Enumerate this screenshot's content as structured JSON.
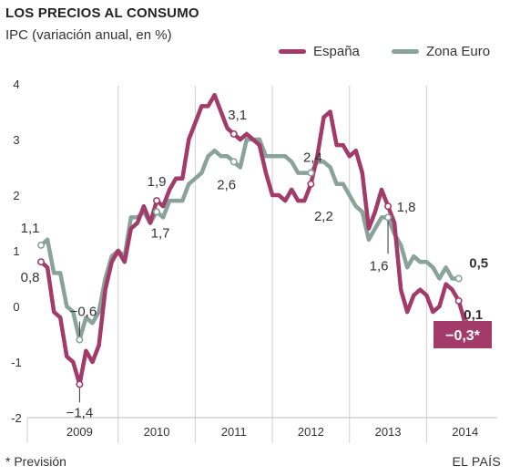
{
  "header": {
    "title": "LOS PRECIOS AL CONSUMO",
    "subtitle": "IPC (variación anual, en %)"
  },
  "footer": {
    "footnote": "* Previsión",
    "source": "EL PAÍS"
  },
  "colors": {
    "espana": "#a23a6a",
    "zona_euro": "#8aa39a",
    "grid": "#cfcfcf",
    "background": "#ffffff"
  },
  "chart_data": {
    "type": "line",
    "title": "LOS PRECIOS AL CONSUMO",
    "subtitle": "IPC (variación anual, en %)",
    "xlabel": "",
    "ylabel": "",
    "ylim": [
      -2,
      4
    ],
    "y_ticks": [
      "4",
      "3",
      "2",
      "1",
      "0",
      "-1",
      "-2"
    ],
    "y_tick_values": [
      4,
      3,
      2,
      1,
      0,
      -1,
      -2
    ],
    "x_ticks": [
      "2009",
      "2010",
      "2011",
      "2012",
      "2013",
      "2014"
    ],
    "x_tick_years": [
      2009,
      2010,
      2011,
      2012,
      2013,
      2014
    ],
    "x_start": "2008-12",
    "x_end": "2014-12",
    "grid": "vertical lines at year boundaries",
    "legend": "top-right",
    "series": [
      {
        "name": "España",
        "color": "#a23a6a",
        "start": "2009-01",
        "values": [
          0.8,
          0.7,
          -0.1,
          -0.2,
          -0.9,
          -1.0,
          -1.4,
          -0.8,
          -1.0,
          -0.7,
          0.3,
          0.8,
          1.0,
          0.8,
          1.4,
          1.5,
          1.8,
          1.5,
          1.9,
          1.8,
          2.1,
          2.3,
          2.3,
          3.0,
          3.3,
          3.6,
          3.6,
          3.8,
          3.5,
          3.2,
          3.1,
          3.0,
          3.1,
          3.0,
          2.9,
          2.4,
          2.0,
          2.0,
          1.9,
          2.1,
          1.9,
          1.9,
          2.2,
          2.7,
          3.4,
          3.5,
          2.9,
          2.9,
          2.7,
          2.8,
          2.4,
          1.4,
          1.7,
          2.1,
          1.8,
          1.5,
          0.3,
          -0.1,
          0.2,
          0.3,
          0.2,
          -0.1,
          0.0,
          0.4,
          0.3,
          0.1,
          -0.3
        ],
        "labels": [
          {
            "text": "0,8",
            "at": "2009-01"
          },
          {
            "text": "−1,4",
            "at": "2009-07"
          },
          {
            "text": "1,9",
            "at": "2010-07"
          },
          {
            "text": "3,1",
            "at": "2011-07"
          },
          {
            "text": "2,2",
            "at": "2012-07"
          },
          {
            "text": "1,8",
            "at": "2013-07"
          },
          {
            "text": "0,1",
            "at": "2014-06"
          },
          {
            "text": "−0,3*",
            "at": "2014-07"
          }
        ]
      },
      {
        "name": "Zona Euro",
        "color": "#8aa39a",
        "start": "2009-01",
        "values": [
          1.1,
          1.2,
          0.6,
          0.6,
          0.0,
          -0.1,
          -0.6,
          -0.2,
          -0.3,
          -0.1,
          0.5,
          0.9,
          1.0,
          0.9,
          1.6,
          1.6,
          1.7,
          1.5,
          1.7,
          1.6,
          1.9,
          1.9,
          1.9,
          2.2,
          2.3,
          2.4,
          2.7,
          2.8,
          2.7,
          2.7,
          2.6,
          2.5,
          3.0,
          3.0,
          3.0,
          2.7,
          2.7,
          2.7,
          2.7,
          2.6,
          2.4,
          2.4,
          2.4,
          2.6,
          2.6,
          2.5,
          2.2,
          2.2,
          2.0,
          1.8,
          1.7,
          1.2,
          1.4,
          1.6,
          1.6,
          1.3,
          1.1,
          0.7,
          0.9,
          0.8,
          0.8,
          0.7,
          0.5,
          0.7,
          0.5,
          0.5
        ],
        "labels": [
          {
            "text": "1,1",
            "at": "2009-01"
          },
          {
            "text": "−0,6",
            "at": "2009-07"
          },
          {
            "text": "1,7",
            "at": "2010-07"
          },
          {
            "text": "2,6",
            "at": "2011-07"
          },
          {
            "text": "2,4",
            "at": "2012-07"
          },
          {
            "text": "1,6",
            "at": "2013-07"
          },
          {
            "text": "0,5",
            "at": "2014-06"
          }
        ]
      }
    ]
  }
}
